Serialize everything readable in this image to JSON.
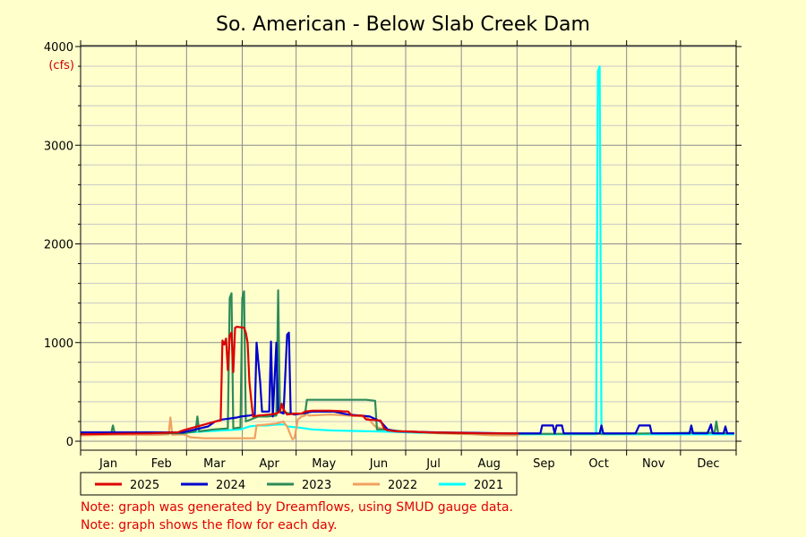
{
  "chart_data": {
    "type": "line",
    "title": "So. American - Below Slab Creek Dam",
    "ylabel": "(cfs)",
    "xlabel": "",
    "ylim": [
      0,
      4000
    ],
    "yticks": [
      0,
      1000,
      2000,
      3000,
      4000
    ],
    "categories": [
      "Jan",
      "Feb",
      "Mar",
      "Apr",
      "May",
      "Jun",
      "Jul",
      "Aug",
      "Sep",
      "Oct",
      "Nov",
      "Dec"
    ],
    "x_unit": "day of year",
    "grid": true,
    "legend_placement": "bottom",
    "series": [
      {
        "name": "2025",
        "color": "#dd0000",
        "points": [
          [
            1,
            70
          ],
          [
            20,
            75
          ],
          [
            40,
            80
          ],
          [
            55,
            90
          ],
          [
            58,
            110
          ],
          [
            62,
            130
          ],
          [
            68,
            160
          ],
          [
            72,
            180
          ],
          [
            76,
            200
          ],
          [
            79,
            210
          ],
          [
            80,
            1020
          ],
          [
            81,
            980
          ],
          [
            82,
            1040
          ],
          [
            83,
            720
          ],
          [
            84,
            1070
          ],
          [
            85,
            1100
          ],
          [
            86,
            700
          ],
          [
            87,
            1150
          ],
          [
            88,
            1160
          ],
          [
            92,
            1150
          ],
          [
            93,
            1100
          ],
          [
            94,
            1000
          ],
          [
            95,
            600
          ],
          [
            96,
            420
          ],
          [
            97,
            250
          ],
          [
            100,
            260
          ],
          [
            106,
            270
          ],
          [
            110,
            280
          ],
          [
            112,
            300
          ],
          [
            113,
            380
          ],
          [
            114,
            320
          ],
          [
            116,
            270
          ],
          [
            120,
            280
          ],
          [
            124,
            280
          ],
          [
            126,
            300
          ],
          [
            130,
            310
          ],
          [
            140,
            310
          ],
          [
            150,
            300
          ],
          [
            152,
            260
          ],
          [
            158,
            260
          ],
          [
            160,
            220
          ],
          [
            168,
            210
          ],
          [
            170,
            130
          ],
          [
            172,
            110
          ],
          [
            177,
            100
          ],
          [
            182,
            100
          ],
          [
            188,
            95
          ],
          [
            195,
            90
          ],
          [
            210,
            85
          ],
          [
            225,
            80
          ],
          [
            240,
            80
          ],
          [
            245,
            80
          ]
        ]
      },
      {
        "name": "2024",
        "color": "#0000cc",
        "points": [
          [
            1,
            90
          ],
          [
            30,
            90
          ],
          [
            58,
            90
          ],
          [
            65,
            120
          ],
          [
            72,
            150
          ],
          [
            76,
            200
          ],
          [
            80,
            220
          ],
          [
            84,
            230
          ],
          [
            88,
            240
          ],
          [
            90,
            250
          ],
          [
            95,
            260
          ],
          [
            98,
            270
          ],
          [
            99,
            1000
          ],
          [
            101,
            600
          ],
          [
            102,
            300
          ],
          [
            106,
            300
          ],
          [
            107,
            1010
          ],
          [
            108,
            250
          ],
          [
            110,
            1000
          ],
          [
            111,
            300
          ],
          [
            114,
            280
          ],
          [
            116,
            1080
          ],
          [
            117,
            1100
          ],
          [
            118,
            280
          ],
          [
            120,
            270
          ],
          [
            124,
            280
          ],
          [
            130,
            300
          ],
          [
            136,
            300
          ],
          [
            142,
            300
          ],
          [
            150,
            270
          ],
          [
            157,
            260
          ],
          [
            162,
            250
          ],
          [
            168,
            200
          ],
          [
            172,
            120
          ],
          [
            177,
            100
          ],
          [
            200,
            90
          ],
          [
            220,
            85
          ],
          [
            240,
            80
          ],
          [
            255,
            80
          ],
          [
            257,
            80
          ],
          [
            258,
            160
          ],
          [
            262,
            160
          ],
          [
            264,
            160
          ],
          [
            265,
            80
          ],
          [
            266,
            160
          ],
          [
            269,
            160
          ],
          [
            270,
            80
          ],
          [
            290,
            80
          ],
          [
            291,
            160
          ],
          [
            292,
            80
          ],
          [
            310,
            80
          ],
          [
            312,
            160
          ],
          [
            318,
            160
          ],
          [
            319,
            80
          ],
          [
            340,
            80
          ],
          [
            341,
            160
          ],
          [
            342,
            80
          ],
          [
            350,
            80
          ],
          [
            352,
            170
          ],
          [
            353,
            80
          ],
          [
            359,
            80
          ],
          [
            360,
            150
          ],
          [
            361,
            80
          ],
          [
            365,
            80
          ]
        ]
      },
      {
        "name": "2023",
        "color": "#2e8b57",
        "points": [
          [
            1,
            80
          ],
          [
            18,
            80
          ],
          [
            19,
            160
          ],
          [
            20,
            80
          ],
          [
            58,
            80
          ],
          [
            65,
            100
          ],
          [
            66,
            250
          ],
          [
            67,
            100
          ],
          [
            75,
            120
          ],
          [
            83,
            130
          ],
          [
            84,
            1450
          ],
          [
            85,
            1500
          ],
          [
            86,
            130
          ],
          [
            90,
            140
          ],
          [
            91,
            1450
          ],
          [
            92,
            1520
          ],
          [
            93,
            200
          ],
          [
            100,
            250
          ],
          [
            105,
            250
          ],
          [
            110,
            260
          ],
          [
            111,
            1530
          ],
          [
            112,
            300
          ],
          [
            118,
            280
          ],
          [
            122,
            280
          ],
          [
            126,
            280
          ],
          [
            127,
            420
          ],
          [
            140,
            420
          ],
          [
            150,
            420
          ],
          [
            160,
            420
          ],
          [
            165,
            410
          ],
          [
            166,
            120
          ],
          [
            170,
            120
          ],
          [
            180,
            100
          ],
          [
            200,
            85
          ],
          [
            220,
            80
          ],
          [
            245,
            75
          ],
          [
            260,
            75
          ],
          [
            280,
            75
          ],
          [
            300,
            75
          ],
          [
            320,
            80
          ],
          [
            340,
            85
          ],
          [
            354,
            85
          ],
          [
            355,
            200
          ],
          [
            356,
            80
          ],
          [
            365,
            80
          ]
        ]
      },
      {
        "name": "2022",
        "color": "#f0a060",
        "points": [
          [
            1,
            60
          ],
          [
            20,
            65
          ],
          [
            45,
            65
          ],
          [
            50,
            70
          ],
          [
            51,
            240
          ],
          [
            52,
            65
          ],
          [
            58,
            70
          ],
          [
            60,
            60
          ],
          [
            62,
            40
          ],
          [
            70,
            30
          ],
          [
            80,
            30
          ],
          [
            90,
            30
          ],
          [
            98,
            30
          ],
          [
            99,
            160
          ],
          [
            105,
            170
          ],
          [
            110,
            180
          ],
          [
            114,
            200
          ],
          [
            115,
            170
          ],
          [
            116,
            150
          ],
          [
            118,
            60
          ],
          [
            119,
            20
          ],
          [
            120,
            30
          ],
          [
            122,
            220
          ],
          [
            124,
            250
          ],
          [
            126,
            260
          ],
          [
            127,
            280
          ],
          [
            128,
            260
          ],
          [
            140,
            270
          ],
          [
            150,
            260
          ],
          [
            160,
            250
          ],
          [
            165,
            150
          ],
          [
            170,
            120
          ],
          [
            180,
            100
          ],
          [
            200,
            80
          ],
          [
            220,
            70
          ],
          [
            230,
            60
          ],
          [
            245,
            60
          ]
        ]
      },
      {
        "name": "2021",
        "color": "#00ffff",
        "points": [
          [
            1,
            80
          ],
          [
            30,
            80
          ],
          [
            58,
            85
          ],
          [
            62,
            90
          ],
          [
            70,
            100
          ],
          [
            80,
            110
          ],
          [
            90,
            120
          ],
          [
            95,
            150
          ],
          [
            100,
            160
          ],
          [
            105,
            160
          ],
          [
            110,
            170
          ],
          [
            115,
            170
          ],
          [
            116,
            150
          ],
          [
            122,
            140
          ],
          [
            126,
            130
          ],
          [
            130,
            120
          ],
          [
            140,
            110
          ],
          [
            150,
            105
          ],
          [
            165,
            100
          ],
          [
            175,
            95
          ],
          [
            190,
            85
          ],
          [
            210,
            80
          ],
          [
            240,
            70
          ],
          [
            260,
            70
          ],
          [
            280,
            70
          ],
          [
            288,
            70
          ],
          [
            289,
            3750
          ],
          [
            290,
            3800
          ],
          [
            291,
            70
          ],
          [
            300,
            70
          ],
          [
            320,
            70
          ],
          [
            340,
            70
          ],
          [
            365,
            70
          ]
        ]
      }
    ]
  },
  "notes": [
    "Note: graph was generated by Dreamflows, using SMUD gauge data.",
    "Note: graph shows the  flow for each day."
  ]
}
